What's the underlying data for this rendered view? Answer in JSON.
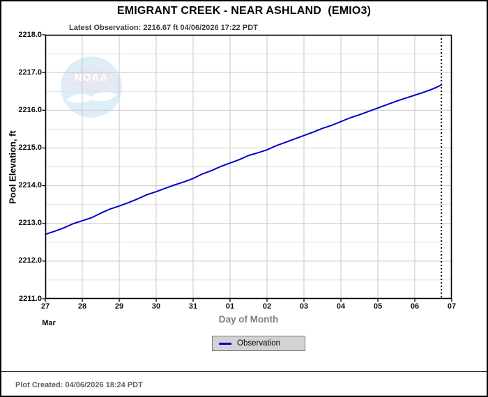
{
  "header": {
    "title": "EMIGRANT CREEK - NEAR ASHLAND  (EMIO3)",
    "latest_observation": "Latest Observation: 2216.67 ft 04/06/2026 17:22 PDT"
  },
  "footer": {
    "plot_created": "Plot Created: 04/06/2026 18:24 PDT"
  },
  "legend": {
    "observation_label": "Observation"
  },
  "colors": {
    "observation_line": "#0000cc",
    "grid_major": "#c9c9c9",
    "grid_minor": "#e0e0e0",
    "axis": "#000000",
    "legend_bg": "#d3d3d3",
    "axis_title_gray": "#7d7d7d"
  },
  "chart_data": {
    "type": "line",
    "title": "EMIGRANT CREEK - NEAR ASHLAND (EMIO3)",
    "xlabel": "Day of Month",
    "ylabel": "Pool Elevation, ft",
    "x_month_label": "Mar",
    "x_tick_labels": [
      "27",
      "28",
      "29",
      "30",
      "31",
      "01",
      "02",
      "03",
      "04",
      "05",
      "06",
      "07"
    ],
    "y_tick_labels": [
      "2211.0",
      "2212.0",
      "2213.0",
      "2214.0",
      "2215.0",
      "2216.0",
      "2217.0",
      "2218.0"
    ],
    "ylim": [
      2211.0,
      2218.0
    ],
    "y_minor_step": 0.5,
    "grid": "on",
    "legend_position": "bottom-center",
    "latest_marker_day_offset": 10.72,
    "latest_observation_value_ft": 2216.67,
    "latest_observation_time": "04/06/2026 17:22 PDT",
    "series": [
      {
        "name": "Observation",
        "color": "#0000cc",
        "x_day_offset_from_mar27": [
          0,
          0.25,
          0.5,
          0.75,
          1,
          1.25,
          1.5,
          1.75,
          2,
          2.25,
          2.5,
          2.75,
          3,
          3.25,
          3.5,
          3.75,
          4,
          4.25,
          4.5,
          4.75,
          5,
          5.25,
          5.5,
          5.75,
          6,
          6.25,
          6.5,
          6.75,
          7,
          7.25,
          7.5,
          7.75,
          8,
          8.25,
          8.5,
          8.75,
          9,
          9.25,
          9.5,
          9.75,
          10,
          10.25,
          10.5,
          10.72
        ],
        "y_pool_elevation_ft": [
          2212.71,
          2212.79,
          2212.88,
          2212.99,
          2213.07,
          2213.15,
          2213.27,
          2213.38,
          2213.46,
          2213.55,
          2213.65,
          2213.76,
          2213.84,
          2213.93,
          2214.02,
          2214.1,
          2214.19,
          2214.31,
          2214.4,
          2214.51,
          2214.6,
          2214.69,
          2214.8,
          2214.87,
          2214.95,
          2215.06,
          2215.15,
          2215.24,
          2215.33,
          2215.42,
          2215.52,
          2215.6,
          2215.7,
          2215.8,
          2215.88,
          2215.97,
          2216.06,
          2216.15,
          2216.24,
          2216.32,
          2216.4,
          2216.48,
          2216.57,
          2216.67
        ]
      }
    ]
  }
}
